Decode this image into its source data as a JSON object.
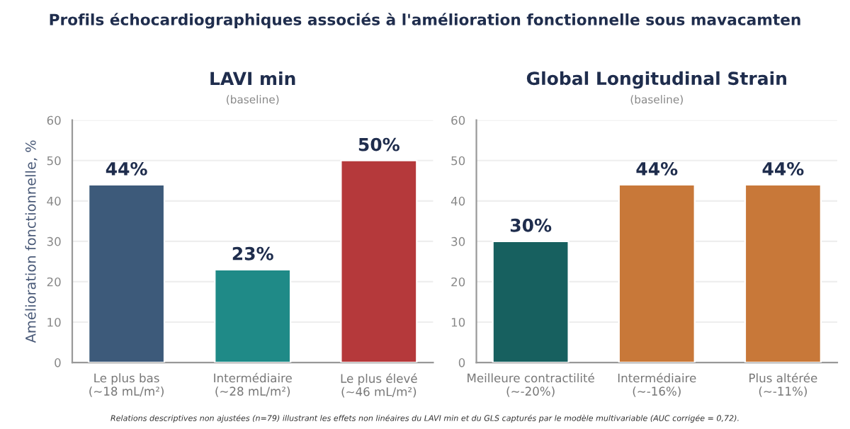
{
  "chart_data": [
    {
      "type": "bar",
      "title": "LAVI min",
      "subtitle": "(baseline)",
      "ylabel": "Amélioration fonctionnelle, %",
      "categories": [
        "Le plus bas\n(~18 mL/m²)",
        "Intermédiaire\n(~28 mL/m²)",
        "Le plus élevé\n(~46 mL/m²)"
      ],
      "values": [
        44,
        23,
        50
      ],
      "colors": [
        "#3d5a7a",
        "#1f8a87",
        "#b5393b"
      ],
      "value_labels": [
        "44%",
        "23%",
        "50%"
      ],
      "ylim": [
        0,
        60
      ],
      "yticks": [
        0,
        10,
        20,
        30,
        40,
        50,
        60
      ],
      "grid": "y",
      "annotations": [
        "Profils échocardiographiques associés à l'amélioration fonctionnelle sous mavacamten",
        "Relations descriptives non ajustées (n=79) illustrant les effets non linéaires du LAVI min et du GLS capturés par le modèle multivariable (AUC corrigée = 0,72)."
      ]
    },
    {
      "type": "bar",
      "title": "Global Longitudinal Strain",
      "subtitle": "(baseline)",
      "categories": [
        "Meilleure contractilité\n(~-20%)",
        "Intermédiaire\n(~-16%)",
        "Plus altérée\n(~-11%)"
      ],
      "values": [
        30,
        44,
        44
      ],
      "colors": [
        "#17605f",
        "#c87839",
        "#c87839"
      ],
      "value_labels": [
        "30%",
        "44%",
        "44%"
      ],
      "ylim": [
        0,
        60
      ],
      "yticks": [
        0,
        10,
        20,
        30,
        40,
        50,
        60
      ],
      "grid": "y"
    }
  ]
}
